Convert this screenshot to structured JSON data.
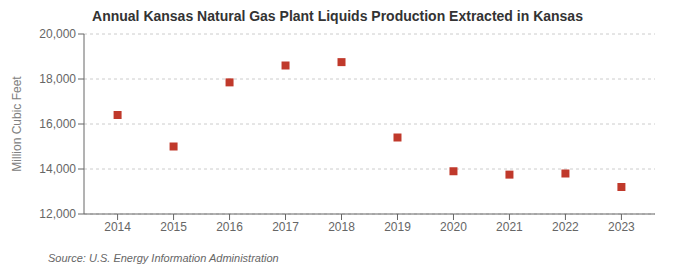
{
  "chart_data": {
    "type": "scatter",
    "title": "Annual Kansas Natural Gas Plant Liquids Production Extracted in Kansas",
    "ylabel": "Million Cubic Feet",
    "source": "Source: U.S. Energy Information Administration",
    "x": [
      2014,
      2015,
      2016,
      2017,
      2018,
      2019,
      2020,
      2021,
      2022,
      2023
    ],
    "values": [
      16400,
      15000,
      17850,
      18600,
      18750,
      15400,
      13900,
      13750,
      13800,
      13200
    ],
    "xlim": [
      2013.4,
      2023.6
    ],
    "xticks": [
      2014,
      2015,
      2016,
      2017,
      2018,
      2019,
      2020,
      2021,
      2022,
      2023
    ],
    "ylim": [
      12000,
      20000
    ],
    "yticks": [
      {
        "value": 12000,
        "label": "12,000"
      },
      {
        "value": 14000,
        "label": "14,000"
      },
      {
        "value": 16000,
        "label": "16,000"
      },
      {
        "value": 18000,
        "label": "18,000"
      },
      {
        "value": 20000,
        "label": "20,000"
      }
    ],
    "color": "#c0392b",
    "marker": "square",
    "grid": "y"
  }
}
